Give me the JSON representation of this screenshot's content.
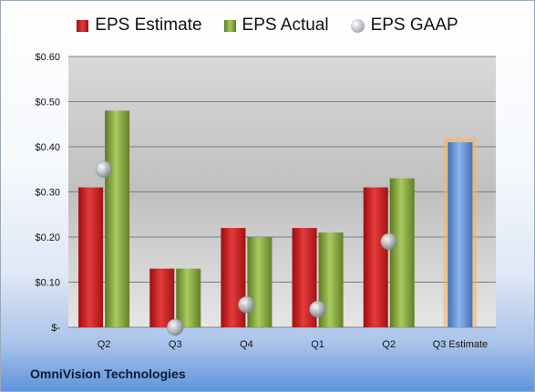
{
  "chart_data": {
    "type": "bar",
    "categories": [
      "Q2",
      "Q3",
      "Q4",
      "Q1",
      "Q2",
      "Q3 Estimate"
    ],
    "series": [
      {
        "name": "EPS Estimate",
        "values": [
          0.31,
          0.13,
          0.22,
          0.22,
          0.31,
          null
        ],
        "color": "#d42a2a"
      },
      {
        "name": "EPS Actual",
        "values": [
          0.48,
          0.13,
          0.2,
          0.21,
          0.33,
          null
        ],
        "color": "#8fb04a"
      },
      {
        "name": "EPS GAAP",
        "values": [
          0.35,
          0.0,
          0.05,
          0.04,
          0.19,
          null
        ],
        "color": "#b5b9c0"
      },
      {
        "name": "",
        "values": [
          null,
          null,
          null,
          null,
          null,
          0.41
        ],
        "color": "#6f9ad6",
        "highlight": "#f7b562"
      }
    ],
    "ylim": [
      0,
      0.6
    ],
    "ytick_values": [
      0,
      0.1,
      0.2,
      0.3,
      0.4,
      0.5,
      0.6
    ],
    "ytick_labels": [
      "$-",
      "$0.10",
      "$0.20",
      "$0.30",
      "$0.40",
      "$0.50",
      "$0.60"
    ],
    "grid": true,
    "legend_position": "top"
  },
  "legend": {
    "estimate": "EPS Estimate",
    "actual": "EPS Actual",
    "gaap": "EPS GAAP"
  },
  "company": "OmniVision Technologies"
}
